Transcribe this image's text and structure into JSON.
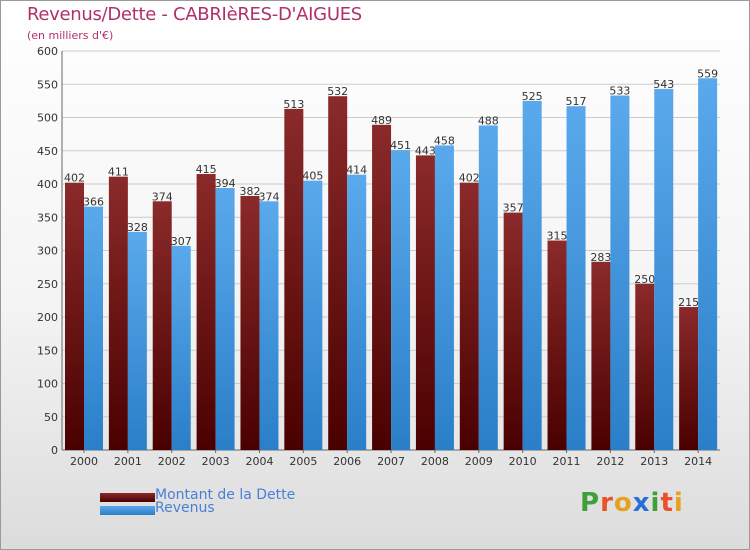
{
  "header": {
    "title": "Revenus/Dette - CABRIèRES-D'AIGUES",
    "subtitle": "(en milliers d'€)"
  },
  "logo": {
    "text": "Proxiti",
    "colors": [
      "#3fa03a",
      "#e8512a",
      "#e8a020",
      "#2a6fd6",
      "#3fa03a",
      "#e8512a",
      "#e8a020"
    ]
  },
  "colors": {
    "dette_top": "#8b2a2a",
    "dette_bottom": "#4a0000",
    "revenus_top": "#5aa9ec",
    "revenus_bottom": "#2a7fc8",
    "grid": "#cccccc",
    "axis_text": "#333333"
  },
  "chart_data": {
    "type": "bar",
    "categories": [
      "2000",
      "2001",
      "2002",
      "2003",
      "2004",
      "2005",
      "2006",
      "2007",
      "2008",
      "2009",
      "2010",
      "2011",
      "2012",
      "2013",
      "2014"
    ],
    "series": [
      {
        "name": "Montant de la Dette",
        "values": [
          402,
          411,
          374,
          415,
          382,
          513,
          532,
          489,
          443,
          402,
          357,
          315,
          283,
          250,
          215
        ]
      },
      {
        "name": "Revenus",
        "values": [
          366,
          328,
          307,
          394,
          374,
          405,
          414,
          451,
          458,
          488,
          525,
          517,
          533,
          543,
          559
        ]
      }
    ],
    "ylim": [
      0,
      600
    ],
    "yticks": [
      0,
      50,
      100,
      150,
      200,
      250,
      300,
      350,
      400,
      450,
      500,
      550,
      600
    ],
    "grid": true,
    "legend": "bottom-left"
  }
}
